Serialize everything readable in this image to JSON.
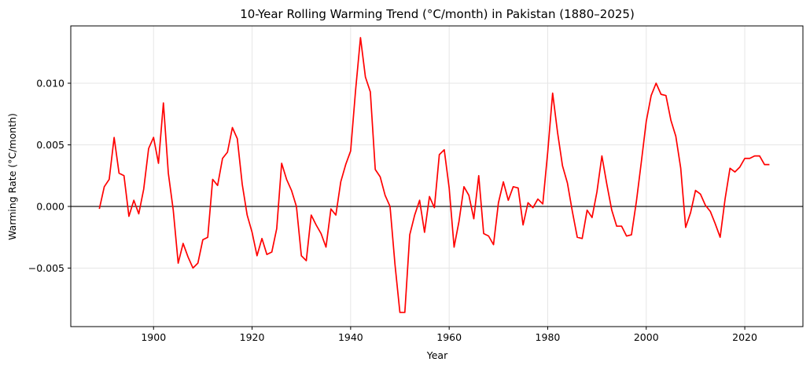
{
  "chart_data": {
    "type": "line",
    "title": "10-Year Rolling Warming Trend (°C/month) in Pakistan (1880–2025)",
    "xlabel": "Year",
    "ylabel": "Warming Rate (°C/month)",
    "xlim": [
      1883.2,
      2031.8
    ],
    "ylim": [
      -0.00975,
      0.01465
    ],
    "x_ticks": [
      1900,
      1920,
      1940,
      1960,
      1980,
      2000,
      2020
    ],
    "y_ticks": [
      -0.005,
      0.0,
      0.005,
      0.01
    ],
    "x_tick_labels": [
      "1900",
      "1920",
      "1940",
      "1960",
      "1980",
      "2000",
      "2020"
    ],
    "y_tick_labels": [
      "−0.005",
      "0.000",
      "0.005",
      "0.010"
    ],
    "grid": true,
    "reference_line": 0.0,
    "colors": {
      "series": "#ff0000",
      "reference": "#000000",
      "grid": "#e6e6e6"
    },
    "series": [
      {
        "x": [
          1889,
          1890,
          1891,
          1892,
          1893,
          1894,
          1895,
          1896,
          1897,
          1898,
          1899,
          1900,
          1901,
          1902,
          1903,
          1904,
          1905,
          1906,
          1907,
          1908,
          1909,
          1910,
          1911,
          1912,
          1913,
          1914,
          1915,
          1916,
          1917,
          1918,
          1919,
          1920,
          1921,
          1922,
          1923,
          1924,
          1925,
          1926,
          1927,
          1928,
          1929,
          1930,
          1931,
          1932,
          1933,
          1934,
          1935,
          1936,
          1937,
          1938,
          1939,
          1940,
          1941,
          1942,
          1943,
          1944,
          1945,
          1946,
          1947,
          1948,
          1949,
          1950,
          1951,
          1952,
          1953,
          1954,
          1955,
          1956,
          1957,
          1958,
          1959,
          1960,
          1961,
          1962,
          1963,
          1964,
          1965,
          1966,
          1967,
          1968,
          1969,
          1970,
          1971,
          1972,
          1973,
          1974,
          1975,
          1976,
          1977,
          1978,
          1979,
          1980,
          1981,
          1982,
          1983,
          1984,
          1985,
          1986,
          1987,
          1988,
          1989,
          1990,
          1991,
          1992,
          1993,
          1994,
          1995,
          1996,
          1997,
          1998,
          1999,
          2000,
          2001,
          2002,
          2003,
          2004,
          2005,
          2006,
          2007,
          2008,
          2009,
          2010,
          2011,
          2012,
          2013,
          2014,
          2015,
          2016,
          2017,
          2018,
          2019,
          2020,
          2021,
          2022,
          2023,
          2024,
          2025
        ],
        "values": [
          -0.0002,
          0.0016,
          0.0022,
          0.0056,
          0.0027,
          0.0025,
          -0.0008,
          0.0005,
          -0.0006,
          0.0014,
          0.0047,
          0.0056,
          0.0035,
          0.0084,
          0.0027,
          -0.0003,
          -0.0046,
          -0.003,
          -0.0041,
          -0.005,
          -0.0046,
          -0.0027,
          -0.0025,
          0.0022,
          0.0017,
          0.0039,
          0.0044,
          0.0064,
          0.0055,
          0.0018,
          -0.0007,
          -0.0021,
          -0.004,
          -0.0026,
          -0.0039,
          -0.0037,
          -0.0018,
          0.0035,
          0.0022,
          0.0013,
          0.0,
          -0.004,
          -0.0044,
          -0.0007,
          -0.0015,
          -0.0022,
          -0.0033,
          -0.0002,
          -0.0007,
          0.002,
          0.0034,
          0.0045,
          0.0094,
          0.0137,
          0.0105,
          0.0093,
          0.003,
          0.0024,
          0.0009,
          0.0,
          -0.0047,
          -0.0086,
          -0.0086,
          -0.0023,
          -0.0007,
          0.0005,
          -0.0021,
          0.0008,
          -0.0001,
          0.0042,
          0.0046,
          0.0015,
          -0.0033,
          -0.0012,
          0.0016,
          0.0009,
          -0.001,
          0.0025,
          -0.0022,
          -0.0024,
          -0.0031,
          0.0003,
          0.002,
          0.0005,
          0.0016,
          0.0015,
          -0.0015,
          0.0003,
          -0.0001,
          0.0006,
          0.0002,
          0.0044,
          0.0092,
          0.006,
          0.0033,
          0.0019,
          -0.0004,
          -0.0025,
          -0.0026,
          -0.0003,
          -0.0009,
          0.0012,
          0.0041,
          0.0018,
          -0.0003,
          -0.0016,
          -0.0016,
          -0.0024,
          -0.0023,
          0.0004,
          0.0036,
          0.0069,
          0.009,
          0.01,
          0.0091,
          0.009,
          0.007,
          0.0057,
          0.0031,
          -0.0017,
          -0.0005,
          0.0013,
          0.001,
          0.0001,
          -0.0004,
          -0.0014,
          -0.0025,
          0.0006,
          0.0031,
          0.0028,
          0.0032,
          0.0039,
          0.0039,
          0.0041,
          0.0041,
          0.0034,
          0.0034
        ]
      }
    ]
  }
}
